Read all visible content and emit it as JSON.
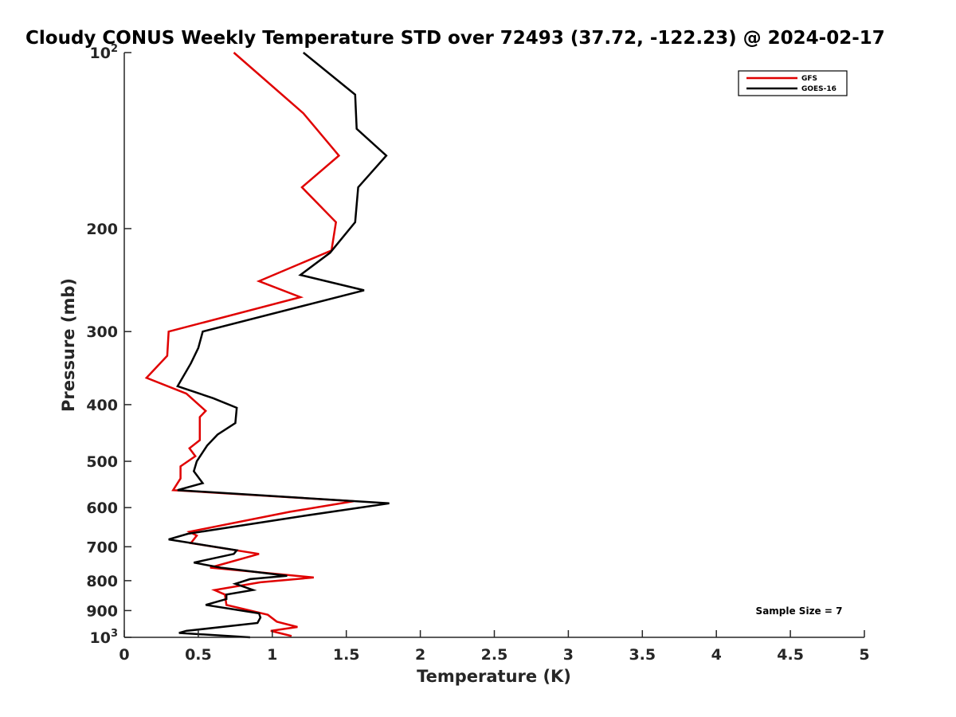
{
  "chart_data": {
    "type": "line",
    "title": "Cloudy CONUS Weekly Temperature STD over 72493 (37.72, -122.23) @ 2024-02-17",
    "xlabel": "Temperature (K)",
    "ylabel": "Pressure (mb)",
    "xlim": [
      0,
      5
    ],
    "ylim": [
      100,
      1000
    ],
    "y_scale": "log",
    "y_reversed": true,
    "grid": false,
    "legend_position": "top-right",
    "x_ticks": [
      "0",
      "0.5",
      "1",
      "1.5",
      "2",
      "2.5",
      "3",
      "3.5",
      "4",
      "4.5",
      "5"
    ],
    "x_tick_values": [
      0,
      0.5,
      1,
      1.5,
      2,
      2.5,
      3,
      3.5,
      4,
      4.5,
      5
    ],
    "y_ticks": [
      {
        "value": 100,
        "base": "10",
        "exp": "2"
      },
      {
        "value": 200,
        "label": "200"
      },
      {
        "value": 300,
        "label": "300"
      },
      {
        "value": 400,
        "label": "400"
      },
      {
        "value": 500,
        "label": "500"
      },
      {
        "value": 600,
        "label": "600"
      },
      {
        "value": 700,
        "label": "700"
      },
      {
        "value": 800,
        "label": "800"
      },
      {
        "value": 900,
        "label": "900"
      },
      {
        "value": 1000,
        "base": "10",
        "exp": "3"
      }
    ],
    "annotation": "Sample Size = 7",
    "series": [
      {
        "name": "GFS",
        "color": "#e00000",
        "points": [
          [
            0.74,
            100
          ],
          [
            1.21,
            127
          ],
          [
            1.45,
            150
          ],
          [
            1.2,
            170
          ],
          [
            1.43,
            195
          ],
          [
            1.4,
            218
          ],
          [
            0.91,
            246
          ],
          [
            1.19,
            262
          ],
          [
            0.3,
            300
          ],
          [
            0.29,
            330
          ],
          [
            0.15,
            360
          ],
          [
            0.42,
            383
          ],
          [
            0.55,
            410
          ],
          [
            0.51,
            420
          ],
          [
            0.51,
            460
          ],
          [
            0.44,
            475
          ],
          [
            0.48,
            490
          ],
          [
            0.38,
            510
          ],
          [
            0.38,
            535
          ],
          [
            0.33,
            560
          ],
          [
            1.55,
            585
          ],
          [
            1.12,
            610
          ],
          [
            0.44,
            660
          ],
          [
            0.49,
            670
          ],
          [
            0.45,
            690
          ],
          [
            0.91,
            720
          ],
          [
            0.58,
            760
          ],
          [
            1.28,
            790
          ],
          [
            0.92,
            805
          ],
          [
            0.61,
            830
          ],
          [
            0.68,
            845
          ],
          [
            0.69,
            880
          ],
          [
            0.97,
            915
          ],
          [
            1.03,
            940
          ],
          [
            1.17,
            960
          ],
          [
            0.99,
            975
          ],
          [
            1.13,
            995
          ]
        ]
      },
      {
        "name": "GOES-16",
        "color": "#000000",
        "points": [
          [
            1.21,
            100
          ],
          [
            1.56,
            118
          ],
          [
            1.57,
            135
          ],
          [
            1.77,
            150
          ],
          [
            1.58,
            170
          ],
          [
            1.56,
            195
          ],
          [
            1.39,
            220
          ],
          [
            1.19,
            240
          ],
          [
            1.62,
            255
          ],
          [
            0.53,
            300
          ],
          [
            0.5,
            320
          ],
          [
            0.45,
            340
          ],
          [
            0.36,
            372
          ],
          [
            0.6,
            390
          ],
          [
            0.76,
            405
          ],
          [
            0.75,
            430
          ],
          [
            0.63,
            450
          ],
          [
            0.56,
            470
          ],
          [
            0.49,
            500
          ],
          [
            0.47,
            520
          ],
          [
            0.53,
            545
          ],
          [
            0.36,
            560
          ],
          [
            1.79,
            590
          ],
          [
            1.21,
            620
          ],
          [
            0.43,
            665
          ],
          [
            0.3,
            680
          ],
          [
            0.76,
            710
          ],
          [
            0.74,
            720
          ],
          [
            0.47,
            745
          ],
          [
            0.65,
            760
          ],
          [
            1.1,
            785
          ],
          [
            0.85,
            795
          ],
          [
            0.75,
            810
          ],
          [
            0.87,
            830
          ],
          [
            0.69,
            845
          ],
          [
            0.69,
            860
          ],
          [
            0.55,
            880
          ],
          [
            0.91,
            910
          ],
          [
            0.92,
            925
          ],
          [
            0.9,
            945
          ],
          [
            0.42,
            975
          ],
          [
            0.37,
            983
          ],
          [
            0.85,
            1000
          ]
        ]
      }
    ]
  }
}
